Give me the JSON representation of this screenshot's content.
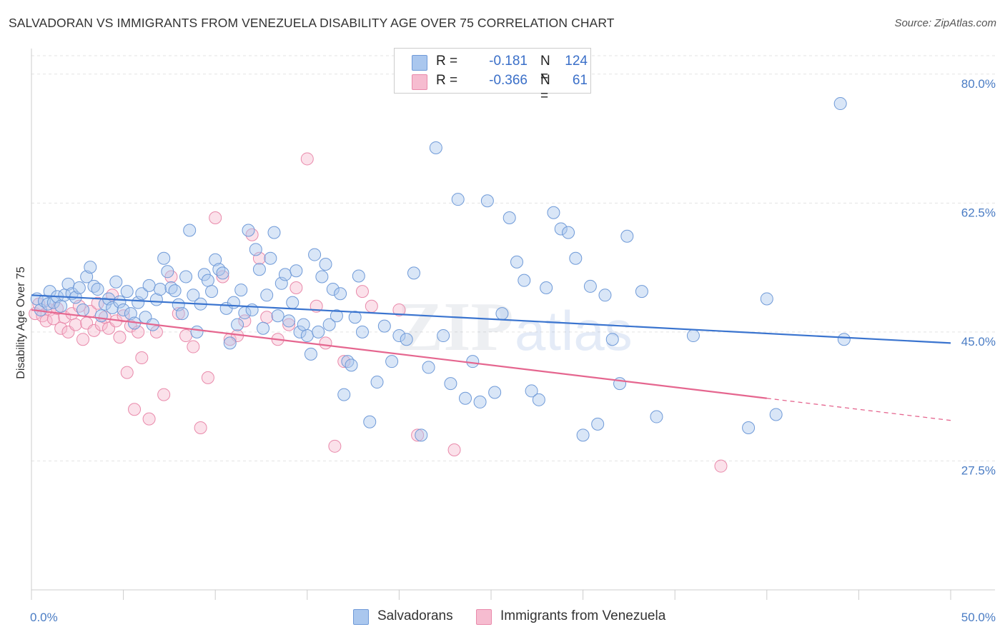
{
  "header": {
    "title": "SALVADORAN VS IMMIGRANTS FROM VENEZUELA DISABILITY AGE OVER 75 CORRELATION CHART",
    "source": "Source: ZipAtlas.com"
  },
  "legend": {
    "rows": [
      {
        "r_label": "R =",
        "r_value": "-0.181",
        "n_label": "N =",
        "n_value": "124"
      },
      {
        "r_label": "R =",
        "r_value": "-0.366",
        "n_label": "N =",
        "n_value": "61"
      }
    ]
  },
  "bottom_legend": {
    "series1": "Salvadorans",
    "series2": "Immigrants from Venezuela"
  },
  "watermark": {
    "zip": "ZIP",
    "atlas": "atlas"
  },
  "colors": {
    "blue_fill": "#aac7ee",
    "blue_stroke": "#6f9ad8",
    "blue_line": "#3a74cf",
    "pink_fill": "#f6bcd0",
    "pink_stroke": "#e98aab",
    "pink_line": "#e5668f",
    "tick_text": "#4a7cc4",
    "grid": "#e3e3e3"
  },
  "chart_data": {
    "type": "scatter",
    "title": "SALVADORAN VS IMMIGRANTS FROM VENEZUELA DISABILITY AGE OVER 75 CORRELATION CHART",
    "xlabel": "",
    "ylabel": "Disability Age Over 75",
    "xlim": [
      0,
      50
    ],
    "ylim": [
      10,
      82.5
    ],
    "x_tick_labels": [
      "0.0%",
      "50.0%"
    ],
    "y_ticks": [
      27.5,
      45.0,
      62.5,
      80.0
    ],
    "y_tick_labels": [
      "27.5%",
      "45.0%",
      "62.5%",
      "80.0%"
    ],
    "grid": "horizontal dashed",
    "series": [
      {
        "name": "Salvadorans",
        "R": -0.181,
        "N": 124,
        "trend": {
          "x0": 0,
          "y0": 50.0,
          "x1": 50,
          "y1": 43.5
        },
        "points": [
          [
            0.3,
            49.5
          ],
          [
            0.5,
            48.0
          ],
          [
            0.7,
            49.2
          ],
          [
            0.9,
            48.8
          ],
          [
            1.0,
            50.5
          ],
          [
            1.2,
            49.0
          ],
          [
            1.4,
            49.8
          ],
          [
            1.6,
            48.5
          ],
          [
            1.8,
            50.0
          ],
          [
            2.0,
            51.5
          ],
          [
            2.2,
            50.2
          ],
          [
            2.4,
            49.7
          ],
          [
            2.6,
            51.0
          ],
          [
            2.8,
            48.0
          ],
          [
            3.0,
            52.5
          ],
          [
            3.2,
            53.8
          ],
          [
            3.4,
            51.2
          ],
          [
            3.6,
            50.8
          ],
          [
            3.8,
            47.2
          ],
          [
            4.0,
            48.8
          ],
          [
            4.2,
            49.5
          ],
          [
            4.4,
            48.3
          ],
          [
            4.6,
            51.8
          ],
          [
            4.8,
            49.1
          ],
          [
            5.0,
            48.0
          ],
          [
            5.2,
            50.5
          ],
          [
            5.4,
            47.5
          ],
          [
            5.6,
            46.2
          ],
          [
            5.8,
            49.0
          ],
          [
            6.0,
            50.2
          ],
          [
            6.2,
            47.0
          ],
          [
            6.4,
            51.3
          ],
          [
            6.6,
            46.0
          ],
          [
            6.8,
            49.4
          ],
          [
            7.0,
            50.8
          ],
          [
            7.2,
            55.0
          ],
          [
            7.4,
            53.2
          ],
          [
            7.6,
            51.0
          ],
          [
            7.8,
            50.6
          ],
          [
            8.0,
            48.7
          ],
          [
            8.2,
            47.5
          ],
          [
            8.4,
            52.5
          ],
          [
            8.6,
            58.8
          ],
          [
            8.8,
            50.0
          ],
          [
            9.0,
            45.0
          ],
          [
            9.2,
            48.8
          ],
          [
            9.4,
            52.8
          ],
          [
            9.6,
            52.0
          ],
          [
            9.8,
            50.5
          ],
          [
            10.0,
            54.8
          ],
          [
            10.2,
            53.5
          ],
          [
            10.4,
            53.0
          ],
          [
            10.6,
            48.2
          ],
          [
            10.8,
            43.5
          ],
          [
            11.0,
            49.0
          ],
          [
            11.2,
            46.0
          ],
          [
            11.4,
            50.7
          ],
          [
            11.6,
            47.6
          ],
          [
            11.8,
            58.8
          ],
          [
            12.0,
            48.0
          ],
          [
            12.2,
            56.2
          ],
          [
            12.4,
            53.5
          ],
          [
            12.6,
            45.5
          ],
          [
            12.8,
            50.0
          ],
          [
            13.0,
            55.0
          ],
          [
            13.2,
            58.5
          ],
          [
            13.4,
            47.2
          ],
          [
            13.6,
            51.6
          ],
          [
            13.8,
            52.8
          ],
          [
            14.0,
            46.5
          ],
          [
            14.2,
            49.0
          ],
          [
            14.4,
            53.3
          ],
          [
            14.6,
            45.0
          ],
          [
            14.8,
            46.0
          ],
          [
            15.0,
            44.5
          ],
          [
            15.2,
            42.0
          ],
          [
            15.4,
            55.5
          ],
          [
            15.6,
            45.0
          ],
          [
            15.8,
            52.5
          ],
          [
            16.0,
            54.2
          ],
          [
            16.2,
            46.0
          ],
          [
            16.4,
            50.8
          ],
          [
            16.6,
            47.2
          ],
          [
            16.8,
            50.2
          ],
          [
            17.0,
            36.5
          ],
          [
            17.2,
            41.0
          ],
          [
            17.4,
            40.5
          ],
          [
            17.6,
            47.0
          ],
          [
            17.8,
            52.6
          ],
          [
            18.0,
            45.0
          ],
          [
            18.4,
            32.8
          ],
          [
            18.8,
            38.2
          ],
          [
            19.2,
            45.8
          ],
          [
            19.6,
            41.0
          ],
          [
            20.0,
            44.5
          ],
          [
            20.4,
            44.0
          ],
          [
            20.8,
            53.0
          ],
          [
            21.2,
            31.0
          ],
          [
            21.6,
            40.2
          ],
          [
            22.0,
            70.0
          ],
          [
            22.4,
            44.5
          ],
          [
            22.8,
            38.0
          ],
          [
            23.2,
            63.0
          ],
          [
            23.6,
            36.0
          ],
          [
            24.0,
            41.0
          ],
          [
            24.4,
            35.5
          ],
          [
            24.8,
            62.8
          ],
          [
            25.2,
            36.8
          ],
          [
            25.6,
            47.5
          ],
          [
            26.0,
            60.5
          ],
          [
            26.4,
            54.5
          ],
          [
            26.8,
            52.0
          ],
          [
            27.2,
            37.0
          ],
          [
            27.6,
            35.8
          ],
          [
            28.0,
            51.0
          ],
          [
            28.4,
            61.2
          ],
          [
            28.8,
            59.0
          ],
          [
            29.2,
            58.5
          ],
          [
            29.6,
            55.0
          ],
          [
            30.0,
            31.0
          ],
          [
            30.4,
            51.2
          ],
          [
            30.8,
            32.5
          ],
          [
            31.2,
            50.0
          ],
          [
            31.6,
            44.0
          ],
          [
            32.0,
            38.0
          ],
          [
            32.4,
            58.0
          ],
          [
            33.2,
            50.5
          ],
          [
            34.0,
            33.5
          ],
          [
            36.0,
            44.5
          ],
          [
            39.0,
            32.0
          ],
          [
            40.5,
            33.8
          ],
          [
            44.0,
            76.0
          ],
          [
            44.2,
            44.0
          ],
          [
            40.0,
            49.5
          ]
        ]
      },
      {
        "name": "Immigrants from Venezuela",
        "R": -0.366,
        "N": 61,
        "trend": {
          "x0": 0,
          "y0": 48.0,
          "x1": 40,
          "y1": 36.0,
          "x_dashed_end": 50,
          "y_dashed_end": 33.0
        },
        "points": [
          [
            0.2,
            47.5
          ],
          [
            0.4,
            48.8
          ],
          [
            0.6,
            47.2
          ],
          [
            0.8,
            46.5
          ],
          [
            1.0,
            48.0
          ],
          [
            1.2,
            46.8
          ],
          [
            1.4,
            48.2
          ],
          [
            1.6,
            45.5
          ],
          [
            1.8,
            47.0
          ],
          [
            2.0,
            45.0
          ],
          [
            2.2,
            47.5
          ],
          [
            2.4,
            46.0
          ],
          [
            2.6,
            48.5
          ],
          [
            2.8,
            44.0
          ],
          [
            3.0,
            46.2
          ],
          [
            3.2,
            47.8
          ],
          [
            3.4,
            45.2
          ],
          [
            3.6,
            48.9
          ],
          [
            3.8,
            46.0
          ],
          [
            4.0,
            47.0
          ],
          [
            4.2,
            45.5
          ],
          [
            4.4,
            50.0
          ],
          [
            4.6,
            46.5
          ],
          [
            4.8,
            44.3
          ],
          [
            5.0,
            47.2
          ],
          [
            5.2,
            39.5
          ],
          [
            5.4,
            45.8
          ],
          [
            5.6,
            34.5
          ],
          [
            5.8,
            45.0
          ],
          [
            6.0,
            41.5
          ],
          [
            6.4,
            33.2
          ],
          [
            6.8,
            45.0
          ],
          [
            7.2,
            36.5
          ],
          [
            7.6,
            52.5
          ],
          [
            8.0,
            47.5
          ],
          [
            8.4,
            44.5
          ],
          [
            8.8,
            43.0
          ],
          [
            9.2,
            32.0
          ],
          [
            9.6,
            38.8
          ],
          [
            10.0,
            60.5
          ],
          [
            10.4,
            52.5
          ],
          [
            10.8,
            44.0
          ],
          [
            11.2,
            44.5
          ],
          [
            11.6,
            46.5
          ],
          [
            12.0,
            58.2
          ],
          [
            12.4,
            55.0
          ],
          [
            12.8,
            47.0
          ],
          [
            13.4,
            44.0
          ],
          [
            14.0,
            46.0
          ],
          [
            14.4,
            51.0
          ],
          [
            15.0,
            68.5
          ],
          [
            15.5,
            48.5
          ],
          [
            16.0,
            43.5
          ],
          [
            16.5,
            29.5
          ],
          [
            17.0,
            41.0
          ],
          [
            18.0,
            50.5
          ],
          [
            18.5,
            48.5
          ],
          [
            20.0,
            48.0
          ],
          [
            21.0,
            31.0
          ],
          [
            23.0,
            29.0
          ],
          [
            37.5,
            26.8
          ]
        ]
      }
    ]
  }
}
